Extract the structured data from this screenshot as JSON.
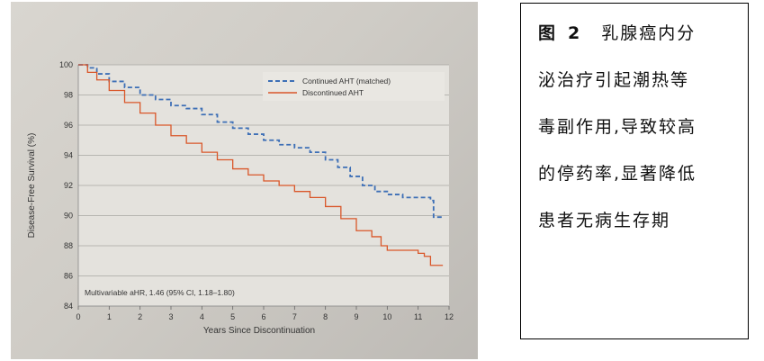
{
  "chart_data": {
    "type": "line",
    "xlabel": "Years Since Discontinuation",
    "ylabel": "Disease-Free Survival (%)",
    "xlim": [
      0,
      12
    ],
    "ylim": [
      84,
      100
    ],
    "xticks": [
      0,
      1,
      2,
      3,
      4,
      5,
      6,
      7,
      8,
      9,
      10,
      11,
      12
    ],
    "yticks": [
      84,
      86,
      88,
      90,
      92,
      94,
      96,
      98,
      100
    ],
    "grid": "horizontal",
    "legend_position": "top-right",
    "annotation": "Multivariable aHR, 1.46 (95% CI, 1.18–1.80)",
    "series": [
      {
        "name": "Continued AHT (matched)",
        "color": "#3d6fb6",
        "style": "dashed",
        "x": [
          0,
          0.3,
          0.6,
          1.0,
          1.5,
          2.0,
          2.5,
          3.0,
          3.5,
          4.0,
          4.5,
          5.0,
          5.5,
          6.0,
          6.5,
          7.0,
          7.5,
          8.0,
          8.4,
          8.8,
          9.2,
          9.6,
          10.0,
          10.5,
          11.0,
          11.4,
          11.5,
          11.8
        ],
        "y": [
          100,
          99.8,
          99.4,
          98.9,
          98.5,
          98.0,
          97.7,
          97.3,
          97.1,
          96.7,
          96.2,
          95.8,
          95.4,
          95.0,
          94.7,
          94.5,
          94.2,
          93.7,
          93.2,
          92.6,
          92.0,
          91.6,
          91.4,
          91.2,
          91.2,
          91.0,
          89.9,
          89.9
        ]
      },
      {
        "name": "Discontinued AHT",
        "color": "#d9572a",
        "style": "solid",
        "x": [
          0,
          0.3,
          0.6,
          1.0,
          1.5,
          2.0,
          2.5,
          3.0,
          3.5,
          4.0,
          4.5,
          5.0,
          5.5,
          6.0,
          6.5,
          7.0,
          7.5,
          8.0,
          8.5,
          9.0,
          9.5,
          9.8,
          10.0,
          10.5,
          11.0,
          11.2,
          11.4,
          11.8
        ],
        "y": [
          100,
          99.5,
          99.0,
          98.3,
          97.5,
          96.8,
          96.0,
          95.3,
          94.8,
          94.2,
          93.7,
          93.1,
          92.7,
          92.3,
          92.0,
          91.6,
          91.2,
          90.6,
          89.8,
          89.0,
          88.6,
          88.0,
          87.7,
          87.7,
          87.5,
          87.3,
          86.7,
          86.7
        ]
      }
    ]
  },
  "caption": {
    "fig_label": "图",
    "fig_number": "2",
    "line1_text": "乳腺癌内分",
    "line2": "泌治疗引起潮热等",
    "line3": "毒副作用,导致较高",
    "line4": "的停药率,显著降低",
    "line5": "患者无病生存期"
  }
}
